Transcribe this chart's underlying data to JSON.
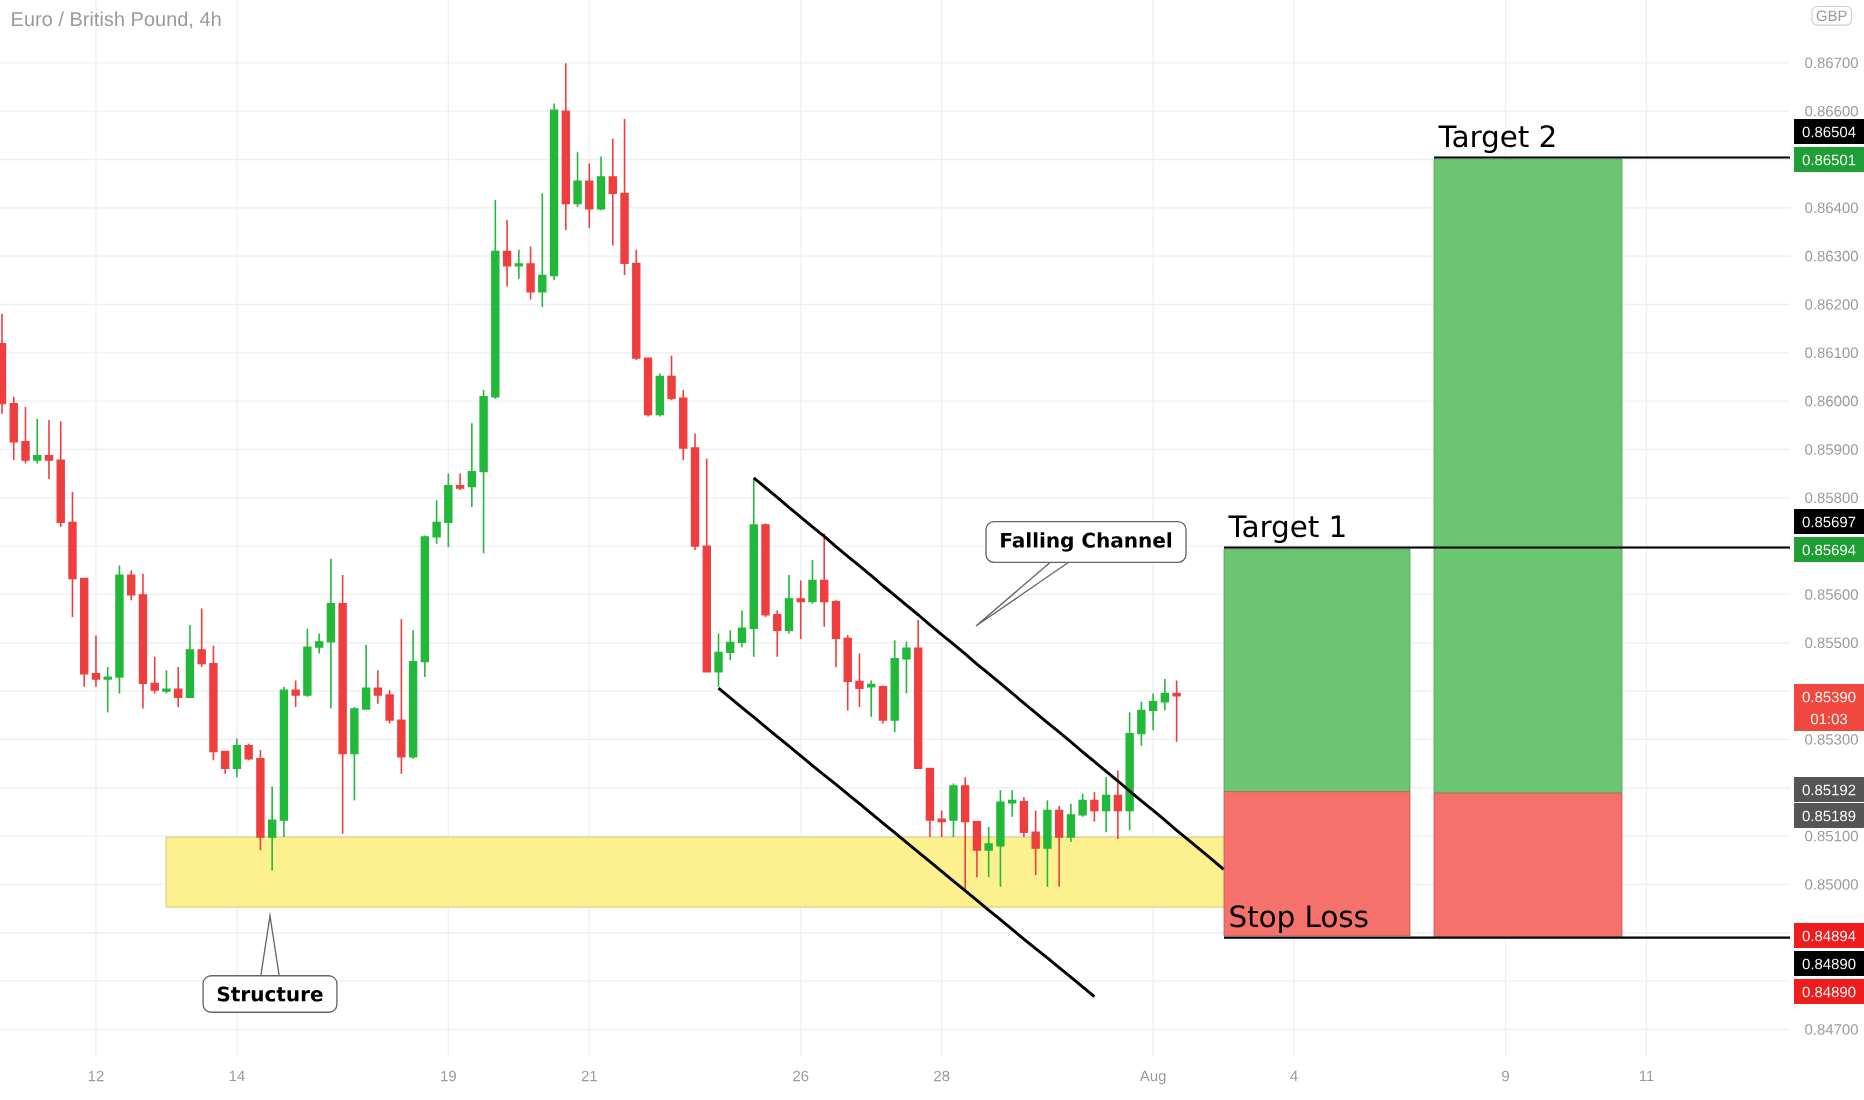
{
  "chart_data": {
    "type": "candlestick",
    "title": "Euro / British Pound, 4h",
    "categories": [
      null,
      null,
      null,
      null,
      null,
      null,
      null,
      null,
      "12",
      null,
      null,
      null,
      null,
      null,
      null,
      null,
      null,
      null,
      null,
      null,
      "14",
      null,
      null,
      null,
      null,
      null,
      null,
      null,
      null,
      null,
      null,
      null,
      null,
      null,
      null,
      null,
      null,
      null,
      "19",
      null,
      null,
      null,
      null,
      null,
      null,
      null,
      null,
      null,
      null,
      null,
      "21",
      null,
      null,
      null,
      null,
      null,
      null,
      null,
      null,
      null,
      null,
      null,
      null,
      null,
      null,
      null,
      null,
      null,
      "26",
      null,
      null,
      null,
      null,
      null,
      null,
      null,
      null,
      null,
      null,
      null,
      "28",
      null,
      null,
      null,
      null,
      null,
      null,
      null,
      null,
      null,
      null,
      null,
      null,
      null,
      null,
      null,
      null,
      null,
      "Aug",
      null,
      null,
      null,
      null,
      null,
      null,
      null,
      null,
      null,
      null,
      null,
      "4",
      null,
      null,
      null,
      null,
      null,
      null,
      null,
      null,
      null,
      null,
      null,
      null,
      null,
      null,
      null,
      null,
      null,
      "9",
      null,
      null,
      null,
      null,
      null,
      null,
      null,
      null,
      null,
      null,
      null,
      "11",
      null,
      null,
      null,
      null,
      null,
      null,
      null,
      null,
      null,
      null,
      null
    ],
    "ylim": [
      0.84645,
      0.8683
    ],
    "yticks": [
      {
        "value": 0.847,
        "label": "0.84700"
      },
      {
        "value": 0.848,
        "label": null
      },
      {
        "value": 0.849,
        "label": null
      },
      {
        "value": 0.85,
        "label": "0.85000"
      },
      {
        "value": 0.851,
        "label": "0.85100"
      },
      {
        "value": 0.852,
        "label": null
      },
      {
        "value": 0.853,
        "label": "0.85300"
      },
      {
        "value": 0.854,
        "label": null
      },
      {
        "value": 0.855,
        "label": "0.85500"
      },
      {
        "value": 0.856,
        "label": "0.85600"
      },
      {
        "value": 0.857,
        "label": null
      },
      {
        "value": 0.858,
        "label": "0.85800"
      },
      {
        "value": 0.859,
        "label": "0.85900"
      },
      {
        "value": 0.86,
        "label": "0.86000"
      },
      {
        "value": 0.861,
        "label": "0.86100"
      },
      {
        "value": 0.862,
        "label": "0.86200"
      },
      {
        "value": 0.863,
        "label": "0.86300"
      },
      {
        "value": 0.864,
        "label": "0.86400"
      },
      {
        "value": 0.865,
        "label": null
      },
      {
        "value": 0.866,
        "label": "0.86600"
      },
      {
        "value": 0.867,
        "label": "0.86700"
      }
    ],
    "grid": true,
    "series": [
      {
        "color": "#22b83a",
        "ohlc": [
          null,
          null,
          null,
          [
            0.85878,
            0.85963,
            0.85871,
            0.85887
          ],
          null,
          null,
          null,
          null,
          null,
          [
            0.85425,
            0.8545,
            0.85356,
            0.85429
          ],
          [
            0.85429,
            0.8566,
            0.85395,
            0.8564
          ],
          null,
          null,
          null,
          [
            0.854,
            0.85443,
            0.85395,
            0.85404
          ],
          null,
          [
            0.85387,
            0.85537,
            0.85387,
            0.85485
          ],
          null,
          null,
          null,
          [
            0.8524,
            0.85302,
            0.85222,
            0.85287
          ],
          null,
          null,
          [
            0.85098,
            0.85202,
            0.85029,
            0.85133
          ],
          [
            0.85133,
            0.85409,
            0.85098,
            0.85402
          ],
          null,
          [
            0.85392,
            0.85529,
            0.85388,
            0.85491
          ],
          [
            0.85491,
            0.85519,
            0.85478,
            0.85502
          ],
          [
            0.85502,
            0.85674,
            0.85364,
            0.85581
          ],
          null,
          [
            0.85271,
            0.85367,
            0.85174,
            0.85363
          ],
          [
            0.85363,
            0.85496,
            0.85363,
            0.85406
          ],
          null,
          null,
          null,
          [
            0.85264,
            0.85526,
            0.8526,
            0.85461
          ],
          [
            0.85461,
            0.85722,
            0.85429,
            0.85719
          ],
          [
            0.85719,
            0.85795,
            0.85705,
            0.85749
          ],
          [
            0.85749,
            0.8585,
            0.85698,
            0.85825
          ],
          null,
          [
            0.85823,
            0.85954,
            0.85781,
            0.85854
          ],
          [
            0.85854,
            0.86023,
            0.85685,
            0.86009
          ],
          [
            0.86009,
            0.86416,
            0.86005,
            0.8631
          ],
          null,
          [
            0.8628,
            0.86313,
            0.86253,
            0.86284
          ],
          null,
          [
            0.86226,
            0.8643,
            0.86195,
            0.8626
          ],
          [
            0.8626,
            0.86616,
            0.8625,
            0.86602
          ],
          null,
          [
            0.86409,
            0.86515,
            0.86402,
            0.86455
          ],
          null,
          [
            0.86398,
            0.86506,
            0.86395,
            0.86464
          ],
          null,
          null,
          null,
          null,
          [
            0.85972,
            0.86057,
            0.85968,
            0.86051
          ],
          null,
          null,
          null,
          null,
          [
            0.8544,
            0.85519,
            0.85409,
            0.8548
          ],
          [
            0.8548,
            0.85526,
            0.85464,
            0.85501
          ],
          [
            0.85501,
            0.85567,
            0.85491,
            0.8553
          ],
          [
            0.8553,
            0.85839,
            0.85471,
            0.85744
          ],
          null,
          null,
          [
            0.85526,
            0.8564,
            0.85519,
            0.85591
          ],
          null,
          [
            0.85585,
            0.85671,
            0.85581,
            0.85629
          ],
          null,
          null,
          null,
          null,
          [
            0.85409,
            0.85422,
            0.85347,
            0.85414
          ],
          null,
          [
            0.8534,
            0.85505,
            0.85315,
            0.85467
          ],
          [
            0.85467,
            0.85502,
            0.85395,
            0.85489
          ],
          null,
          null,
          null,
          [
            0.85133,
            0.85209,
            0.85098,
            0.85204
          ],
          null,
          null,
          [
            0.85071,
            0.85119,
            0.85015,
            0.85084
          ],
          [
            0.8508,
            0.85195,
            0.84995,
            0.8517
          ],
          [
            0.85169,
            0.85195,
            0.8514,
            0.85174
          ],
          null,
          null,
          [
            0.85075,
            0.85174,
            0.84995,
            0.85153
          ],
          null,
          [
            0.85098,
            0.85167,
            0.85088,
            0.85144
          ],
          [
            0.85144,
            0.85188,
            0.8514,
            0.85174
          ],
          null,
          [
            0.85153,
            0.85222,
            0.85108,
            0.85184
          ],
          null,
          [
            0.85153,
            0.85356,
            0.85112,
            0.85312
          ],
          [
            0.85312,
            0.85378,
            0.85287,
            0.8536
          ],
          [
            0.8536,
            0.85395,
            0.85319,
            0.85378
          ],
          [
            0.85378,
            0.85425,
            0.8536,
            0.85395
          ],
          null,
          null,
          null,
          null,
          null,
          null,
          null,
          null,
          null,
          null,
          null,
          null,
          null,
          null,
          null,
          null,
          null,
          null,
          null,
          null,
          null,
          null,
          null,
          null,
          null,
          null,
          null,
          null,
          null,
          null,
          null,
          null,
          null,
          null,
          null,
          null,
          null,
          null,
          null,
          null,
          null,
          null,
          null,
          null,
          null,
          null,
          null,
          null,
          null,
          null,
          null,
          null
        ]
      },
      {
        "color": "#ef3e3e",
        "ohlc": [
          [
            0.86119,
            0.86181,
            0.85974,
            0.85995
          ],
          [
            0.85995,
            0.86009,
            0.85878,
            0.85916
          ],
          [
            0.85916,
            0.85988,
            0.85871,
            0.85878
          ],
          null,
          [
            0.85887,
            0.85961,
            0.85839,
            0.85878
          ],
          [
            0.85878,
            0.85958,
            0.8574,
            0.85749
          ],
          [
            0.85749,
            0.85812,
            0.85553,
            0.85633
          ],
          [
            0.85633,
            0.85633,
            0.85409,
            0.85436
          ],
          [
            0.85436,
            0.85515,
            0.85409,
            0.85425
          ],
          null,
          null,
          [
            0.8564,
            0.8565,
            0.85588,
            0.85599
          ],
          [
            0.85599,
            0.85643,
            0.85364,
            0.85416
          ],
          [
            0.85416,
            0.85471,
            0.85395,
            0.85402
          ],
          null,
          [
            0.85404,
            0.8545,
            0.85367,
            0.85387
          ],
          null,
          [
            0.85485,
            0.85571,
            0.8545,
            0.85457
          ],
          [
            0.85457,
            0.85494,
            0.85257,
            0.85275
          ],
          [
            0.85275,
            0.85275,
            0.85229,
            0.8524
          ],
          null,
          [
            0.85287,
            0.85291,
            0.85257,
            0.8526
          ],
          [
            0.8526,
            0.85278,
            0.85071,
            0.85098
          ],
          null,
          null,
          [
            0.85402,
            0.85422,
            0.85367,
            0.85392
          ],
          null,
          null,
          null,
          [
            0.85581,
            0.8564,
            0.85105,
            0.85271
          ],
          null,
          null,
          [
            0.85406,
            0.85443,
            0.85374,
            0.85392
          ],
          [
            0.85392,
            0.85402,
            0.85333,
            0.8534
          ],
          [
            0.8534,
            0.85549,
            0.85229,
            0.85264
          ],
          null,
          null,
          null,
          null,
          [
            0.85825,
            0.8585,
            0.85816,
            0.8582
          ],
          null,
          null,
          null,
          [
            0.8631,
            0.86375,
            0.86237,
            0.8628
          ],
          null,
          [
            0.86284,
            0.8632,
            0.8621,
            0.86226
          ],
          null,
          null,
          [
            0.866,
            0.86699,
            0.86354,
            0.86409
          ],
          null,
          [
            0.86455,
            0.86492,
            0.86358,
            0.86398
          ],
          null,
          [
            0.86464,
            0.86543,
            0.86322,
            0.8643
          ],
          [
            0.8643,
            0.86584,
            0.86261,
            0.86285
          ],
          [
            0.86285,
            0.86313,
            0.86085,
            0.86089
          ],
          [
            0.86089,
            0.86089,
            0.85968,
            0.85972
          ],
          null,
          [
            0.86051,
            0.86094,
            0.86002,
            0.86006
          ],
          [
            0.86006,
            0.86023,
            0.85878,
            0.85903
          ],
          [
            0.85903,
            0.85933,
            0.85692,
            0.857
          ],
          [
            0.857,
            0.85881,
            0.8544,
            0.8544
          ],
          null,
          null,
          null,
          null,
          [
            0.85744,
            0.85747,
            0.85553,
            0.85558
          ],
          [
            0.85558,
            0.85567,
            0.85471,
            0.85526
          ],
          null,
          [
            0.85591,
            0.85629,
            0.85508,
            0.85585
          ],
          null,
          [
            0.85629,
            0.85726,
            0.85533,
            0.85585
          ],
          [
            0.85585,
            0.85588,
            0.8545,
            0.85509
          ],
          [
            0.85509,
            0.85516,
            0.8536,
            0.8542
          ],
          [
            0.8542,
            0.85478,
            0.85367,
            0.85406
          ],
          null,
          [
            0.85409,
            0.85411,
            0.85333,
            0.8534
          ],
          null,
          null,
          [
            0.85489,
            0.85547,
            0.85239,
            0.8524
          ],
          [
            0.8524,
            0.8524,
            0.85098,
            0.85133
          ],
          [
            0.85135,
            0.85153,
            0.85098,
            0.8513
          ],
          null,
          [
            0.85204,
            0.85222,
            0.84988,
            0.8513
          ],
          [
            0.8513,
            0.8513,
            0.85015,
            0.85071
          ],
          null,
          null,
          null,
          [
            0.85171,
            0.85181,
            0.85098,
            0.85108
          ],
          [
            0.85108,
            0.85153,
            0.85019,
            0.85075
          ],
          null,
          [
            0.85153,
            0.85163,
            0.84995,
            0.85098
          ],
          null,
          null,
          [
            0.85174,
            0.85191,
            0.8513,
            0.85153
          ],
          null,
          [
            0.85184,
            0.85236,
            0.85094,
            0.85153
          ],
          null,
          null,
          null,
          null,
          [
            0.85395,
            0.85422,
            0.85295,
            0.8539
          ],
          null,
          null,
          null,
          null,
          null,
          null,
          null,
          null,
          null,
          null,
          null,
          null,
          null,
          null,
          null,
          null,
          null,
          null,
          null,
          null,
          null,
          null,
          null,
          null,
          null,
          null,
          null,
          null,
          null,
          null,
          null,
          null,
          null,
          null,
          null,
          null,
          null,
          null,
          null,
          null,
          null,
          null,
          null,
          null,
          null,
          null,
          null,
          null,
          null,
          null,
          null
        ]
      },
      {
        "type": "line",
        "color": "#000000",
        "values": [
          null,
          null,
          null,
          null,
          null,
          null,
          null,
          null,
          null,
          null,
          null,
          null,
          null,
          null,
          null,
          null,
          null,
          null,
          null,
          null,
          null,
          null,
          null,
          null,
          null,
          null,
          null,
          null,
          null,
          null,
          null,
          null,
          null,
          null,
          null,
          null,
          null,
          null,
          null,
          null,
          null,
          null,
          null,
          null,
          null,
          null,
          null,
          null,
          null,
          null,
          null,
          null,
          null,
          null,
          null,
          null,
          null,
          null,
          null,
          null,
          null,
          null,
          null,
          null,
          0.85841,
          0.85821,
          0.85801,
          0.8578,
          0.8576,
          0.8574,
          0.8572,
          0.85699,
          0.85679,
          0.85659,
          0.85639,
          0.85618,
          0.85598,
          0.85578,
          0.85558,
          0.85537,
          0.85517,
          0.85497,
          0.85477,
          0.85456,
          0.85436,
          0.85416,
          0.85396,
          0.85375,
          0.85355,
          0.85335,
          0.85315,
          0.85295,
          0.85274,
          0.85254,
          0.85234,
          0.85214,
          0.85193,
          0.85173,
          0.85153,
          0.85133,
          0.85112,
          0.85092,
          0.85072,
          0.85052,
          0.85031,
          null,
          null,
          null,
          null,
          null,
          null,
          null,
          null,
          null,
          null,
          null,
          null,
          null,
          null,
          null,
          null,
          null,
          null,
          null,
          null,
          null,
          null,
          null,
          null,
          null,
          null,
          null,
          null,
          null,
          null,
          null,
          null,
          null,
          null,
          null,
          null,
          null,
          null,
          null,
          null,
          null,
          null,
          null,
          null,
          null,
          null,
          null
        ]
      },
      {
        "type": "line",
        "color": "#000000",
        "values": [
          null,
          null,
          null,
          null,
          null,
          null,
          null,
          null,
          null,
          null,
          null,
          null,
          null,
          null,
          null,
          null,
          null,
          null,
          null,
          null,
          null,
          null,
          null,
          null,
          null,
          null,
          null,
          null,
          null,
          null,
          null,
          null,
          null,
          null,
          null,
          null,
          null,
          null,
          null,
          null,
          null,
          null,
          null,
          null,
          null,
          null,
          null,
          null,
          null,
          null,
          null,
          null,
          null,
          null,
          null,
          null,
          null,
          null,
          null,
          null,
          null,
          0.85406,
          0.85386,
          0.85366,
          0.85346,
          0.85326,
          0.85306,
          0.85286,
          0.85266,
          0.85246,
          0.85226,
          0.85207,
          0.85187,
          0.85167,
          0.85147,
          0.85127,
          0.85107,
          0.85087,
          0.85067,
          0.85047,
          0.85027,
          0.85007,
          0.84987,
          0.84967,
          0.84947,
          0.84927,
          0.84907,
          0.84887,
          0.84867,
          0.84848,
          0.84828,
          0.84808,
          0.84788,
          0.84768,
          null,
          null,
          null,
          null,
          null,
          null,
          null,
          null,
          null,
          null,
          null,
          null,
          null,
          null,
          null,
          null,
          null,
          null,
          null,
          null,
          null,
          null,
          null,
          null,
          null,
          null,
          null,
          null,
          null,
          null,
          null,
          null,
          null,
          null,
          null,
          null,
          null,
          null,
          null,
          null,
          null,
          null,
          null,
          null,
          null,
          null,
          null,
          null,
          null,
          null,
          null,
          null,
          null,
          null,
          null,
          null,
          null,
          null
        ]
      }
    ],
    "bands": [
      {
        "axis": "y",
        "from": 0.84953,
        "to": 0.85098,
        "color": "#fdf08f"
      },
      {
        "axis": "y",
        "from": 0.85192,
        "to": 0.85694,
        "color": "#6cc671"
      },
      {
        "axis": "y",
        "from": 0.84894,
        "to": 0.85192,
        "color": "#f4716c"
      },
      {
        "axis": "y",
        "from": 0.85189,
        "to": 0.86501,
        "color": "#6cc671"
      },
      {
        "axis": "y",
        "from": 0.8489,
        "to": 0.85189,
        "color": "#f4716c"
      }
    ],
    "ref_lines": [
      {
        "axis": "y",
        "value": 0.86504,
        "label": "Target 2",
        "color": "#000000"
      },
      {
        "axis": "y",
        "value": 0.85697,
        "label": "Target 1",
        "color": "#000000"
      },
      {
        "axis": "y",
        "value": 0.8489,
        "label": "Stop Loss",
        "color": "#000000"
      }
    ],
    "annotations": [
      "Falling Channel",
      "Structure",
      "GBP",
      "0.86504",
      "0.86501",
      "0.85697",
      "0.85694",
      "0.85390",
      "01:03",
      "0.85192",
      "0.85189",
      "0.84894",
      "0.84890",
      "0.84890"
    ]
  }
}
